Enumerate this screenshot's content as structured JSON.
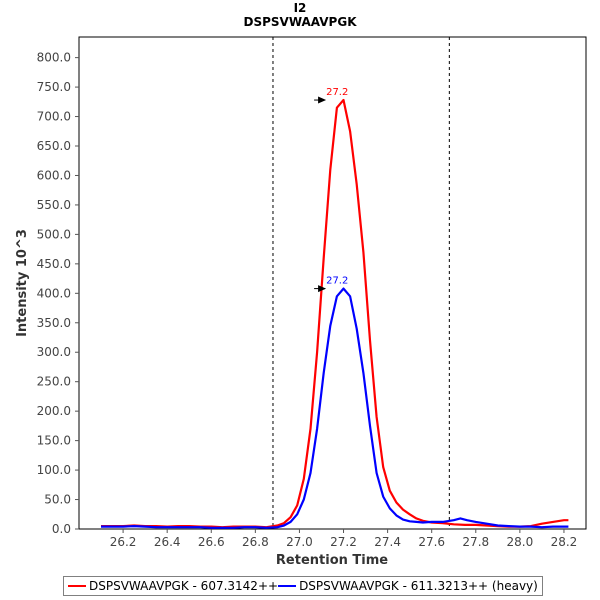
{
  "chart_data": {
    "type": "line",
    "title": "I2",
    "subtitle": "DSPSVWAAVPGK",
    "xlabel": "Retention Time",
    "ylabel": "Intensity 10^3",
    "xlim": [
      26.0,
      28.3
    ],
    "ylim": [
      0,
      835
    ],
    "xticks": [
      "26.2",
      "26.4",
      "26.6",
      "26.8",
      "27.0",
      "27.2",
      "27.4",
      "27.6",
      "27.8",
      "28.0",
      "28.2"
    ],
    "xtick_values": [
      26.2,
      26.4,
      26.6,
      26.8,
      27.0,
      27.2,
      27.4,
      27.6,
      27.8,
      28.0,
      28.2
    ],
    "yticks": [
      "0.0",
      "50.0",
      "100.0",
      "150.0",
      "200.0",
      "250.0",
      "300.0",
      "350.0",
      "400.0",
      "450.0",
      "500.0",
      "550.0",
      "600.0",
      "650.0",
      "700.0",
      "750.0",
      "800.0"
    ],
    "ytick_values": [
      0,
      50,
      100,
      150,
      200,
      250,
      300,
      350,
      400,
      450,
      500,
      550,
      600,
      650,
      700,
      750,
      800
    ],
    "boundaries": [
      26.88,
      27.68
    ],
    "series": [
      {
        "name": "DSPSVWAAVPGK - 607.3142++",
        "color": "#ff0000",
        "peak_label": "27.2",
        "peak_x": 27.13,
        "peak_y": 728,
        "points": [
          [
            26.1,
            5
          ],
          [
            26.15,
            5
          ],
          [
            26.2,
            5
          ],
          [
            26.25,
            6
          ],
          [
            26.3,
            5
          ],
          [
            26.35,
            5
          ],
          [
            26.4,
            4
          ],
          [
            26.45,
            5
          ],
          [
            26.5,
            5
          ],
          [
            26.55,
            4
          ],
          [
            26.6,
            4
          ],
          [
            26.65,
            3
          ],
          [
            26.7,
            4
          ],
          [
            26.75,
            4
          ],
          [
            26.8,
            4
          ],
          [
            26.85,
            3
          ],
          [
            26.9,
            6
          ],
          [
            26.93,
            10
          ],
          [
            26.96,
            20
          ],
          [
            26.99,
            40
          ],
          [
            27.02,
            85
          ],
          [
            27.05,
            170
          ],
          [
            27.08,
            300
          ],
          [
            27.11,
            460
          ],
          [
            27.14,
            610
          ],
          [
            27.17,
            715
          ],
          [
            27.2,
            728
          ],
          [
            27.23,
            675
          ],
          [
            27.26,
            585
          ],
          [
            27.29,
            470
          ],
          [
            27.32,
            320
          ],
          [
            27.35,
            190
          ],
          [
            27.38,
            105
          ],
          [
            27.41,
            65
          ],
          [
            27.44,
            45
          ],
          [
            27.47,
            33
          ],
          [
            27.5,
            25
          ],
          [
            27.53,
            18
          ],
          [
            27.56,
            14
          ],
          [
            27.6,
            11
          ],
          [
            27.65,
            10
          ],
          [
            27.7,
            8
          ],
          [
            27.75,
            7
          ],
          [
            27.8,
            7
          ],
          [
            27.85,
            6
          ],
          [
            27.9,
            5
          ],
          [
            27.95,
            4
          ],
          [
            28.0,
            4
          ],
          [
            28.05,
            5
          ],
          [
            28.1,
            9
          ],
          [
            28.15,
            12
          ],
          [
            28.2,
            15
          ],
          [
            28.22,
            15
          ]
        ]
      },
      {
        "name": "DSPSVWAAVPGK - 611.3213++ (heavy)",
        "color": "#0000ff",
        "peak_label": "27.2",
        "peak_x": 27.13,
        "peak_y": 408,
        "points": [
          [
            26.1,
            4
          ],
          [
            26.15,
            4
          ],
          [
            26.2,
            4
          ],
          [
            26.25,
            5
          ],
          [
            26.3,
            4
          ],
          [
            26.35,
            3
          ],
          [
            26.4,
            3
          ],
          [
            26.45,
            3
          ],
          [
            26.5,
            3
          ],
          [
            26.55,
            3
          ],
          [
            26.6,
            2
          ],
          [
            26.65,
            2
          ],
          [
            26.7,
            2
          ],
          [
            26.75,
            3
          ],
          [
            26.8,
            3
          ],
          [
            26.85,
            2
          ],
          [
            26.9,
            3
          ],
          [
            26.93,
            6
          ],
          [
            26.96,
            12
          ],
          [
            26.99,
            25
          ],
          [
            27.02,
            50
          ],
          [
            27.05,
            95
          ],
          [
            27.08,
            170
          ],
          [
            27.11,
            265
          ],
          [
            27.14,
            345
          ],
          [
            27.17,
            395
          ],
          [
            27.2,
            408
          ],
          [
            27.23,
            395
          ],
          [
            27.26,
            340
          ],
          [
            27.29,
            265
          ],
          [
            27.32,
            175
          ],
          [
            27.35,
            95
          ],
          [
            27.38,
            55
          ],
          [
            27.41,
            35
          ],
          [
            27.44,
            23
          ],
          [
            27.47,
            16
          ],
          [
            27.5,
            13
          ],
          [
            27.53,
            12
          ],
          [
            27.56,
            11
          ],
          [
            27.6,
            12
          ],
          [
            27.65,
            12
          ],
          [
            27.7,
            15
          ],
          [
            27.73,
            18
          ],
          [
            27.76,
            15
          ],
          [
            27.8,
            12
          ],
          [
            27.85,
            9
          ],
          [
            27.9,
            6
          ],
          [
            27.95,
            5
          ],
          [
            28.0,
            4
          ],
          [
            28.05,
            4
          ],
          [
            28.1,
            3
          ],
          [
            28.15,
            4
          ],
          [
            28.2,
            4
          ],
          [
            28.22,
            4
          ]
        ]
      }
    ],
    "legend_position": "bottom"
  }
}
